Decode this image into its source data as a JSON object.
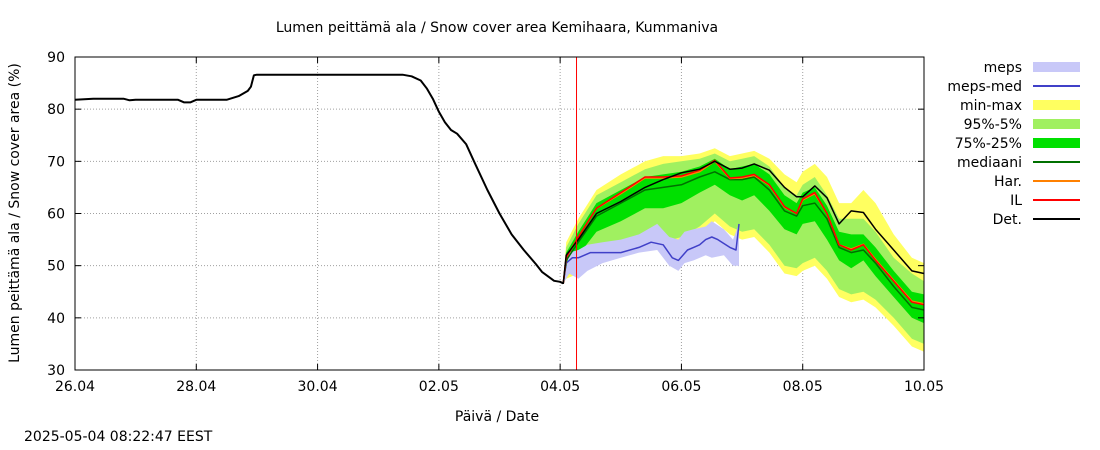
{
  "chart_data": {
    "type": "area",
    "title": "Lumen peittämä ala / Snow cover area Kemihaara, Kummaniva",
    "xlabel": "Päivä / Date",
    "ylabel": "Lumen peittämä ala / Snow cover area (%)",
    "ylim": [
      30,
      90
    ],
    "yticks": [
      30,
      40,
      50,
      60,
      70,
      80,
      90
    ],
    "xlim_days": [
      0,
      14
    ],
    "xticks": [
      {
        "day": 0,
        "label": "26.04"
      },
      {
        "day": 2,
        "label": "28.04"
      },
      {
        "day": 4,
        "label": "30.04"
      },
      {
        "day": 6,
        "label": "02.05"
      },
      {
        "day": 8,
        "label": "04.05"
      },
      {
        "day": 10,
        "label": "06.05"
      },
      {
        "day": 12,
        "label": "08.05"
      },
      {
        "day": 14,
        "label": "10.05"
      }
    ],
    "grid": true,
    "legend_position": "right",
    "now_marker_day": 8.27,
    "now_marker_color": "#ff0000",
    "legend": [
      {
        "label": "meps",
        "kind": "band",
        "color": "#c8c8f8"
      },
      {
        "label": "meps-med",
        "kind": "line",
        "color": "#4040c8"
      },
      {
        "label": "min-max",
        "kind": "band",
        "color": "#ffff60"
      },
      {
        "label": "95%-5%",
        "kind": "band",
        "color": "#a0f060"
      },
      {
        "label": "75%-25%",
        "kind": "band",
        "color": "#00e000"
      },
      {
        "label": "mediaani",
        "kind": "line",
        "color": "#007000"
      },
      {
        "label": "Har.",
        "kind": "line",
        "color": "#ff8000"
      },
      {
        "label": "IL",
        "kind": "line",
        "color": "#ff0000"
      },
      {
        "label": "Det.",
        "kind": "line",
        "color": "#000000"
      }
    ],
    "series": {
      "det_observed": {
        "x": [
          0,
          0.3,
          0.8,
          0.9,
          1.0,
          1.4,
          1.7,
          1.8,
          1.9,
          2.0,
          2.3,
          2.5,
          2.7,
          2.85,
          2.9,
          2.95,
          3.0,
          4.0,
          5.0,
          5.4,
          5.55,
          5.7,
          5.8,
          5.9,
          6.0,
          6.1,
          6.2,
          6.3,
          6.45,
          6.6,
          6.8,
          7.0,
          7.2,
          7.4,
          7.6,
          7.7,
          7.9,
          8.0,
          8.05
        ],
        "y": [
          81.8,
          82.0,
          82.0,
          81.7,
          81.8,
          81.8,
          81.8,
          81.3,
          81.3,
          81.8,
          81.8,
          81.8,
          82.5,
          83.5,
          84.3,
          86.5,
          86.6,
          86.6,
          86.6,
          86.6,
          86.3,
          85.5,
          84.0,
          82.0,
          79.5,
          77.5,
          76.0,
          75.3,
          73.3,
          69.5,
          64.5,
          60.0,
          56.0,
          53.0,
          50.3,
          48.8,
          47.1,
          46.9,
          46.6
        ]
      },
      "det_forecast": {
        "x": [
          8.05,
          8.1,
          8.3,
          8.6,
          9.0,
          9.4,
          9.7,
          10.0,
          10.3,
          10.55,
          10.8,
          11.0,
          11.2,
          11.45,
          11.7,
          11.9,
          12.0,
          12.2,
          12.4,
          12.6,
          12.8,
          13.0,
          13.2,
          13.5,
          13.8,
          14.0
        ],
        "y": [
          46.5,
          52.0,
          55.0,
          60.0,
          62.3,
          65.0,
          66.5,
          67.8,
          68.5,
          70.0,
          68.5,
          68.7,
          69.5,
          68.3,
          65.0,
          63.2,
          63.2,
          65.3,
          63.0,
          58.0,
          60.5,
          60.2,
          57.0,
          53.0,
          49.0,
          48.5
        ]
      },
      "il": {
        "x": [
          8.05,
          8.1,
          8.3,
          8.6,
          9.0,
          9.4,
          9.7,
          10.0,
          10.3,
          10.55,
          10.8,
          11.0,
          11.2,
          11.45,
          11.7,
          11.9,
          12.0,
          12.2,
          12.4,
          12.6,
          12.8,
          13.0,
          13.2,
          13.5,
          13.8,
          14.0
        ],
        "y": [
          46.5,
          51.5,
          55.5,
          61.0,
          64.0,
          67.0,
          67.0,
          67.2,
          68.3,
          70.2,
          66.8,
          67.0,
          67.5,
          65.5,
          61.3,
          60.0,
          62.8,
          64.0,
          60.0,
          54.0,
          53.0,
          54.0,
          51.0,
          47.0,
          43.0,
          42.5
        ]
      },
      "har": {
        "x": [
          8.05,
          8.1,
          8.3,
          8.6,
          9.0,
          9.4,
          9.7,
          10.0,
          10.3,
          10.55,
          10.8,
          11.0,
          11.2,
          11.45,
          11.7,
          11.9,
          12.0,
          12.2,
          12.4,
          12.6,
          12.8,
          13.0,
          13.2,
          13.5,
          13.8,
          14.0
        ],
        "y": [
          46.5,
          51.6,
          55.5,
          61.0,
          63.8,
          66.8,
          66.8,
          67.0,
          68.0,
          70.0,
          66.7,
          66.8,
          67.3,
          65.4,
          61.2,
          60.0,
          62.6,
          63.8,
          60.0,
          54.0,
          53.2,
          54.1,
          51.2,
          47.2,
          43.2,
          42.7
        ]
      },
      "mediaani": {
        "x": [
          8.05,
          8.1,
          8.3,
          8.6,
          9.0,
          9.4,
          9.7,
          10.0,
          10.3,
          10.55,
          10.8,
          11.0,
          11.2,
          11.45,
          11.7,
          11.9,
          12.0,
          12.2,
          12.4,
          12.6,
          12.8,
          13.0,
          13.2,
          13.5,
          13.8,
          14.0
        ],
        "y": [
          46.5,
          51.0,
          54.5,
          59.5,
          62.0,
          64.5,
          65.0,
          65.5,
          67.0,
          68.0,
          66.5,
          66.5,
          67.0,
          64.5,
          60.5,
          59.5,
          61.5,
          62.0,
          59.0,
          53.5,
          52.5,
          53.0,
          50.5,
          46.0,
          42.0,
          41.5
        ]
      },
      "q75_25": {
        "x": [
          8.05,
          8.1,
          8.3,
          8.6,
          9.0,
          9.4,
          9.7,
          10.0,
          10.3,
          10.55,
          10.8,
          11.0,
          11.2,
          11.45,
          11.7,
          11.9,
          12.0,
          12.2,
          12.4,
          12.6,
          12.8,
          13.0,
          13.2,
          13.5,
          13.8,
          14.0
        ],
        "low": [
          46.5,
          49.5,
          52.0,
          56.5,
          58.5,
          61.0,
          61.0,
          62.0,
          64.0,
          65.5,
          63.5,
          62.5,
          63.5,
          60.5,
          57.0,
          56.0,
          58.0,
          58.5,
          55.0,
          51.0,
          49.5,
          51.0,
          48.0,
          44.0,
          40.0,
          39.0
        ],
        "high": [
          46.5,
          52.5,
          56.5,
          62.0,
          64.5,
          67.0,
          67.5,
          68.0,
          69.0,
          70.5,
          68.5,
          69.0,
          69.5,
          67.5,
          63.5,
          62.0,
          64.0,
          65.0,
          61.5,
          56.5,
          56.0,
          56.0,
          53.5,
          49.0,
          45.0,
          44.5
        ]
      },
      "q95_5": {
        "x": [
          8.05,
          8.1,
          8.3,
          8.6,
          9.0,
          9.4,
          9.7,
          10.0,
          10.3,
          10.55,
          10.8,
          11.0,
          11.2,
          11.45,
          11.7,
          11.9,
          12.0,
          12.2,
          12.4,
          12.6,
          12.8,
          13.0,
          13.2,
          13.5,
          13.8,
          14.0
        ],
        "low": [
          46.5,
          48.0,
          49.5,
          52.5,
          53.5,
          55.0,
          54.5,
          55.5,
          57.5,
          60.0,
          57.5,
          56.5,
          57.0,
          54.0,
          50.0,
          49.5,
          50.5,
          51.5,
          49.0,
          45.5,
          44.5,
          45.0,
          43.5,
          40.0,
          36.0,
          35.0
        ],
        "high": [
          46.5,
          53.5,
          58.0,
          63.5,
          66.0,
          68.5,
          69.5,
          70.0,
          70.5,
          71.5,
          70.0,
          70.5,
          71.0,
          69.0,
          65.0,
          63.5,
          65.5,
          67.0,
          63.5,
          59.0,
          59.0,
          59.0,
          56.5,
          51.5,
          48.5,
          47.0
        ]
      },
      "minmax": {
        "x": [
          8.05,
          8.1,
          8.3,
          8.6,
          9.0,
          9.4,
          9.7,
          10.0,
          10.3,
          10.55,
          10.8,
          11.0,
          11.2,
          11.45,
          11.7,
          11.9,
          12.0,
          12.2,
          12.4,
          12.6,
          12.8,
          13.0,
          13.2,
          13.5,
          13.8,
          14.0
        ],
        "low": [
          46.5,
          47.5,
          48.5,
          51.0,
          52.0,
          53.5,
          53.0,
          54.0,
          56.0,
          58.5,
          56.0,
          55.0,
          55.5,
          52.5,
          48.5,
          48.0,
          49.0,
          50.0,
          47.5,
          44.0,
          43.0,
          43.5,
          42.0,
          38.5,
          34.5,
          33.5
        ],
        "high": [
          46.5,
          54.5,
          59.0,
          64.5,
          67.5,
          70.0,
          71.0,
          71.0,
          71.5,
          72.5,
          71.0,
          71.5,
          72.0,
          70.5,
          67.5,
          66.0,
          68.0,
          69.5,
          67.0,
          62.0,
          62.0,
          64.5,
          62.0,
          56.0,
          51.5,
          50.5
        ]
      },
      "meps_band": {
        "x": [
          8.05,
          8.15,
          8.3,
          8.45,
          8.7,
          9.0,
          9.3,
          9.6,
          9.8,
          9.95,
          10.05,
          10.2,
          10.4,
          10.5,
          10.7,
          10.85,
          10.95
        ],
        "low": [
          46.5,
          48.5,
          47.5,
          49.0,
          50.5,
          51.5,
          52.5,
          53.0,
          50.0,
          49.0,
          50.5,
          51.0,
          52.0,
          51.5,
          52.0,
          50.0,
          50.0
        ],
        "high": [
          46.5,
          52.5,
          53.0,
          54.0,
          54.5,
          55.0,
          56.0,
          58.0,
          55.5,
          55.0,
          56.5,
          57.0,
          57.5,
          58.5,
          57.0,
          55.0,
          58.0
        ]
      },
      "meps_med": {
        "x": [
          8.05,
          8.1,
          8.2,
          8.3,
          8.5,
          8.7,
          9.0,
          9.3,
          9.5,
          9.7,
          9.85,
          9.95,
          10.1,
          10.2,
          10.3,
          10.4,
          10.5,
          10.6,
          10.8,
          10.9,
          10.95
        ],
        "y": [
          46.5,
          50.5,
          51.5,
          51.5,
          52.5,
          52.5,
          52.5,
          53.5,
          54.5,
          54.0,
          51.5,
          51.0,
          53.0,
          53.5,
          54.0,
          55.0,
          55.5,
          55.0,
          53.5,
          53.0,
          58.0
        ]
      }
    }
  },
  "footer": {
    "timestamp": "2025-05-04  08:22:47 EEST"
  }
}
